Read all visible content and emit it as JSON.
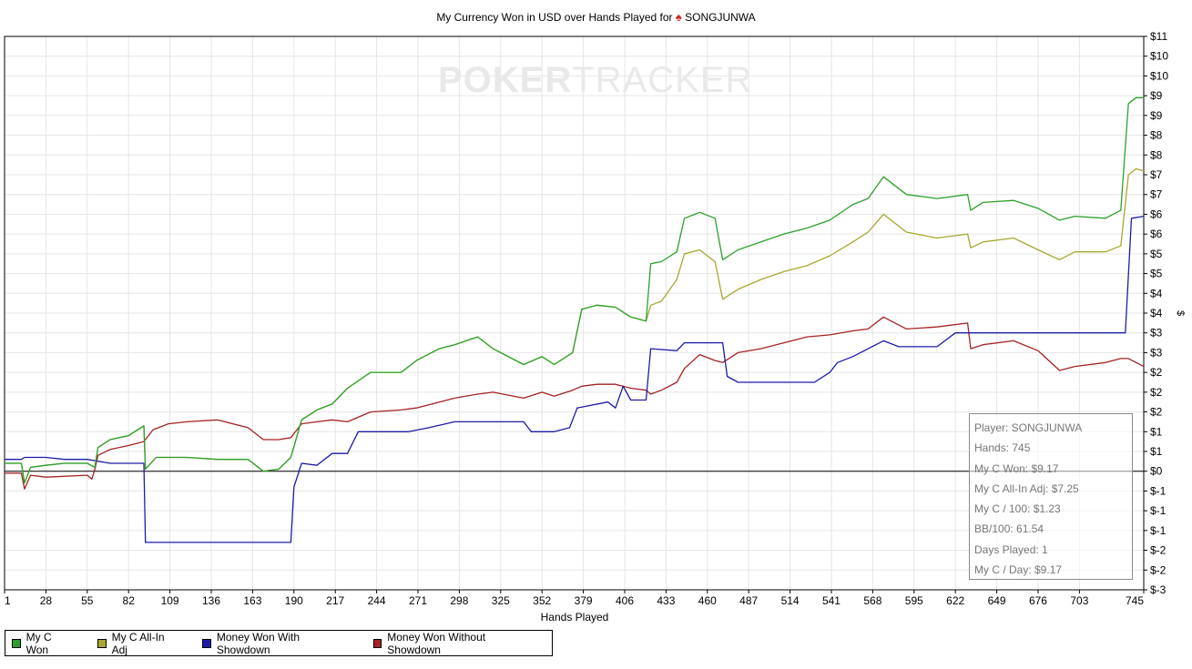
{
  "title": {
    "text": "My Currency Won in USD over Hands Played for",
    "suit": "♠",
    "player": "SONGJUNWA"
  },
  "watermark": {
    "poker": "POKER",
    "tracker": "TRACKER"
  },
  "stats": {
    "player": "Player: SONGJUNWA",
    "hands": "Hands: 745",
    "won": "My C Won: $9.17",
    "allin": "My C All-In Adj: $7.25",
    "per100": "My C / 100: $1.23",
    "bb100": "BB/100: 61.54",
    "days": "Days Played: 1",
    "perday": "My C / Day: $9.17"
  },
  "colors": {
    "won": "#2ca02c",
    "allin": "#a8a832",
    "showdown": "#1c1ca8",
    "noshowdown": "#a52222"
  },
  "chart_data": {
    "type": "line",
    "title": "My Currency Won in USD over Hands Played for ♠ SONGJUNWA",
    "xlabel": "Hands Played",
    "ylabel": "$",
    "xlim": [
      1,
      745
    ],
    "ylim": [
      -3,
      11
    ],
    "x_ticks": [
      1,
      28,
      55,
      82,
      109,
      136,
      163,
      190,
      217,
      244,
      271,
      298,
      325,
      352,
      379,
      406,
      433,
      460,
      487,
      514,
      541,
      568,
      595,
      622,
      649,
      676,
      703,
      745
    ],
    "y_tick_values": [
      -3,
      -2.5,
      -2,
      -1.5,
      -1,
      -0.5,
      0,
      0.5,
      1,
      1.5,
      2,
      2.5,
      3,
      3.5,
      4,
      4.5,
      5,
      5.5,
      6,
      6.5,
      7,
      7.5,
      8,
      8.5,
      9,
      9.5,
      10,
      10.5,
      11
    ],
    "y_tick_labels": [
      "$-3",
      "$-2",
      "$-2",
      "$-1",
      "$-1",
      "$-1",
      "$0",
      "$1",
      "$1",
      "$2",
      "$2",
      "$2",
      "$3",
      "$3",
      "$4",
      "$4",
      "$5",
      "$5",
      "$6",
      "$6",
      "$7",
      "$7",
      "$8",
      "$8",
      "$9",
      "$9",
      "$10",
      "$10",
      "$11"
    ],
    "grid": true,
    "legend_position": "bottom-left",
    "series": [
      {
        "name": "My C Won",
        "color": "#2ca02c",
        "points": [
          [
            1,
            0.2
          ],
          [
            12,
            0.2
          ],
          [
            14,
            -0.3
          ],
          [
            18,
            0.1
          ],
          [
            28,
            0.15
          ],
          [
            40,
            0.2
          ],
          [
            55,
            0.2
          ],
          [
            60,
            0.1
          ],
          [
            62,
            0.6
          ],
          [
            70,
            0.8
          ],
          [
            82,
            0.9
          ],
          [
            92,
            1.15
          ],
          [
            93,
            0.05
          ],
          [
            100,
            0.35
          ],
          [
            120,
            0.35
          ],
          [
            140,
            0.3
          ],
          [
            160,
            0.3
          ],
          [
            170,
            0.0
          ],
          [
            180,
            0.05
          ],
          [
            188,
            0.35
          ],
          [
            195,
            1.3
          ],
          [
            205,
            1.55
          ],
          [
            215,
            1.7
          ],
          [
            225,
            2.1
          ],
          [
            240,
            2.5
          ],
          [
            260,
            2.5
          ],
          [
            270,
            2.8
          ],
          [
            285,
            3.1
          ],
          [
            295,
            3.2
          ],
          [
            310,
            3.4
          ],
          [
            320,
            3.1
          ],
          [
            340,
            2.7
          ],
          [
            352,
            2.9
          ],
          [
            360,
            2.7
          ],
          [
            372,
            3.0
          ],
          [
            378,
            4.1
          ],
          [
            388,
            4.2
          ],
          [
            400,
            4.15
          ],
          [
            410,
            3.9
          ],
          [
            420,
            3.8
          ],
          [
            423,
            5.25
          ],
          [
            430,
            5.3
          ],
          [
            440,
            5.55
          ],
          [
            445,
            6.4
          ],
          [
            455,
            6.55
          ],
          [
            465,
            6.4
          ],
          [
            470,
            5.35
          ],
          [
            480,
            5.6
          ],
          [
            495,
            5.8
          ],
          [
            510,
            6.0
          ],
          [
            525,
            6.15
          ],
          [
            540,
            6.35
          ],
          [
            555,
            6.75
          ],
          [
            565,
            6.9
          ],
          [
            575,
            7.45
          ],
          [
            590,
            7.0
          ],
          [
            610,
            6.9
          ],
          [
            630,
            7.0
          ],
          [
            632,
            6.6
          ],
          [
            640,
            6.8
          ],
          [
            660,
            6.85
          ],
          [
            676,
            6.65
          ],
          [
            690,
            6.35
          ],
          [
            700,
            6.45
          ],
          [
            720,
            6.4
          ],
          [
            730,
            6.6
          ],
          [
            735,
            9.3
          ],
          [
            740,
            9.45
          ],
          [
            745,
            9.45
          ]
        ]
      },
      {
        "name": "My C All-In Adj",
        "color": "#a8a832",
        "points": [
          [
            1,
            0.2
          ],
          [
            12,
            0.2
          ],
          [
            14,
            -0.3
          ],
          [
            18,
            0.1
          ],
          [
            28,
            0.15
          ],
          [
            40,
            0.2
          ],
          [
            55,
            0.2
          ],
          [
            60,
            0.1
          ],
          [
            62,
            0.6
          ],
          [
            70,
            0.8
          ],
          [
            82,
            0.9
          ],
          [
            92,
            1.15
          ],
          [
            93,
            0.05
          ],
          [
            100,
            0.35
          ],
          [
            120,
            0.35
          ],
          [
            140,
            0.3
          ],
          [
            160,
            0.3
          ],
          [
            170,
            0.0
          ],
          [
            180,
            0.05
          ],
          [
            188,
            0.35
          ],
          [
            195,
            1.3
          ],
          [
            205,
            1.55
          ],
          [
            215,
            1.7
          ],
          [
            225,
            2.1
          ],
          [
            240,
            2.5
          ],
          [
            260,
            2.5
          ],
          [
            270,
            2.8
          ],
          [
            285,
            3.1
          ],
          [
            295,
            3.2
          ],
          [
            310,
            3.4
          ],
          [
            320,
            3.1
          ],
          [
            340,
            2.7
          ],
          [
            352,
            2.9
          ],
          [
            360,
            2.7
          ],
          [
            372,
            3.0
          ],
          [
            378,
            4.1
          ],
          [
            388,
            4.2
          ],
          [
            400,
            4.15
          ],
          [
            410,
            3.9
          ],
          [
            420,
            3.8
          ],
          [
            423,
            4.2
          ],
          [
            430,
            4.3
          ],
          [
            440,
            4.85
          ],
          [
            445,
            5.5
          ],
          [
            455,
            5.6
          ],
          [
            465,
            5.3
          ],
          [
            470,
            4.35
          ],
          [
            480,
            4.6
          ],
          [
            495,
            4.85
          ],
          [
            510,
            5.05
          ],
          [
            525,
            5.2
          ],
          [
            540,
            5.45
          ],
          [
            555,
            5.8
          ],
          [
            565,
            6.05
          ],
          [
            575,
            6.5
          ],
          [
            590,
            6.05
          ],
          [
            610,
            5.9
          ],
          [
            630,
            6.0
          ],
          [
            632,
            5.65
          ],
          [
            640,
            5.8
          ],
          [
            660,
            5.9
          ],
          [
            676,
            5.6
          ],
          [
            690,
            5.35
          ],
          [
            700,
            5.55
          ],
          [
            720,
            5.55
          ],
          [
            730,
            5.7
          ],
          [
            735,
            7.5
          ],
          [
            740,
            7.65
          ],
          [
            745,
            7.6
          ]
        ]
      },
      {
        "name": "Money Won With Showdown",
        "color": "#1c1ca8",
        "points": [
          [
            1,
            0.3
          ],
          [
            12,
            0.3
          ],
          [
            14,
            0.35
          ],
          [
            28,
            0.35
          ],
          [
            40,
            0.3
          ],
          [
            55,
            0.3
          ],
          [
            70,
            0.2
          ],
          [
            92,
            0.2
          ],
          [
            93,
            -1.8
          ],
          [
            188,
            -1.8
          ],
          [
            190,
            -0.4
          ],
          [
            195,
            0.2
          ],
          [
            205,
            0.15
          ],
          [
            215,
            0.45
          ],
          [
            225,
            0.45
          ],
          [
            232,
            1.0
          ],
          [
            265,
            1.0
          ],
          [
            278,
            1.1
          ],
          [
            295,
            1.25
          ],
          [
            340,
            1.25
          ],
          [
            345,
            1.0
          ],
          [
            360,
            1.0
          ],
          [
            370,
            1.1
          ],
          [
            375,
            1.6
          ],
          [
            395,
            1.75
          ],
          [
            400,
            1.6
          ],
          [
            405,
            2.15
          ],
          [
            410,
            1.8
          ],
          [
            420,
            1.8
          ],
          [
            423,
            3.1
          ],
          [
            440,
            3.05
          ],
          [
            445,
            3.25
          ],
          [
            470,
            3.25
          ],
          [
            473,
            2.4
          ],
          [
            480,
            2.25
          ],
          [
            510,
            2.25
          ],
          [
            530,
            2.25
          ],
          [
            540,
            2.5
          ],
          [
            545,
            2.75
          ],
          [
            555,
            2.9
          ],
          [
            575,
            3.3
          ],
          [
            585,
            3.15
          ],
          [
            610,
            3.15
          ],
          [
            622,
            3.5
          ],
          [
            630,
            3.5
          ],
          [
            705,
            3.5
          ],
          [
            733,
            3.5
          ],
          [
            737,
            6.4
          ],
          [
            745,
            6.45
          ]
        ]
      },
      {
        "name": "Money Won Without Showdown",
        "color": "#a52222",
        "points": [
          [
            1,
            -0.05
          ],
          [
            12,
            -0.05
          ],
          [
            14,
            -0.45
          ],
          [
            18,
            -0.1
          ],
          [
            28,
            -0.15
          ],
          [
            55,
            -0.1
          ],
          [
            58,
            -0.2
          ],
          [
            60,
            0.05
          ],
          [
            62,
            0.4
          ],
          [
            70,
            0.55
          ],
          [
            82,
            0.65
          ],
          [
            92,
            0.75
          ],
          [
            98,
            1.05
          ],
          [
            108,
            1.2
          ],
          [
            120,
            1.25
          ],
          [
            140,
            1.3
          ],
          [
            160,
            1.1
          ],
          [
            170,
            0.8
          ],
          [
            180,
            0.8
          ],
          [
            188,
            0.85
          ],
          [
            195,
            1.2
          ],
          [
            205,
            1.25
          ],
          [
            215,
            1.3
          ],
          [
            225,
            1.25
          ],
          [
            240,
            1.5
          ],
          [
            260,
            1.55
          ],
          [
            270,
            1.6
          ],
          [
            285,
            1.75
          ],
          [
            295,
            1.85
          ],
          [
            310,
            1.95
          ],
          [
            320,
            2.0
          ],
          [
            340,
            1.85
          ],
          [
            352,
            2.0
          ],
          [
            360,
            1.9
          ],
          [
            372,
            2.05
          ],
          [
            378,
            2.15
          ],
          [
            388,
            2.2
          ],
          [
            400,
            2.2
          ],
          [
            410,
            2.1
          ],
          [
            420,
            2.05
          ],
          [
            423,
            1.95
          ],
          [
            430,
            2.05
          ],
          [
            440,
            2.25
          ],
          [
            445,
            2.6
          ],
          [
            455,
            2.95
          ],
          [
            465,
            2.8
          ],
          [
            470,
            2.75
          ],
          [
            480,
            3.0
          ],
          [
            495,
            3.1
          ],
          [
            510,
            3.25
          ],
          [
            525,
            3.4
          ],
          [
            540,
            3.45
          ],
          [
            555,
            3.55
          ],
          [
            565,
            3.6
          ],
          [
            575,
            3.9
          ],
          [
            590,
            3.6
          ],
          [
            610,
            3.65
          ],
          [
            630,
            3.75
          ],
          [
            632,
            3.1
          ],
          [
            640,
            3.2
          ],
          [
            660,
            3.3
          ],
          [
            676,
            3.05
          ],
          [
            690,
            2.55
          ],
          [
            700,
            2.65
          ],
          [
            720,
            2.75
          ],
          [
            730,
            2.85
          ],
          [
            735,
            2.85
          ],
          [
            740,
            2.75
          ],
          [
            745,
            2.65
          ]
        ]
      }
    ]
  },
  "legend": [
    {
      "label": "My C Won",
      "color": "#2ca02c"
    },
    {
      "label": "My C All-In Adj",
      "color": "#a8a832"
    },
    {
      "label": "Money Won With Showdown",
      "color": "#1c1ca8"
    },
    {
      "label": "Money Won Without Showdown",
      "color": "#a52222"
    }
  ]
}
